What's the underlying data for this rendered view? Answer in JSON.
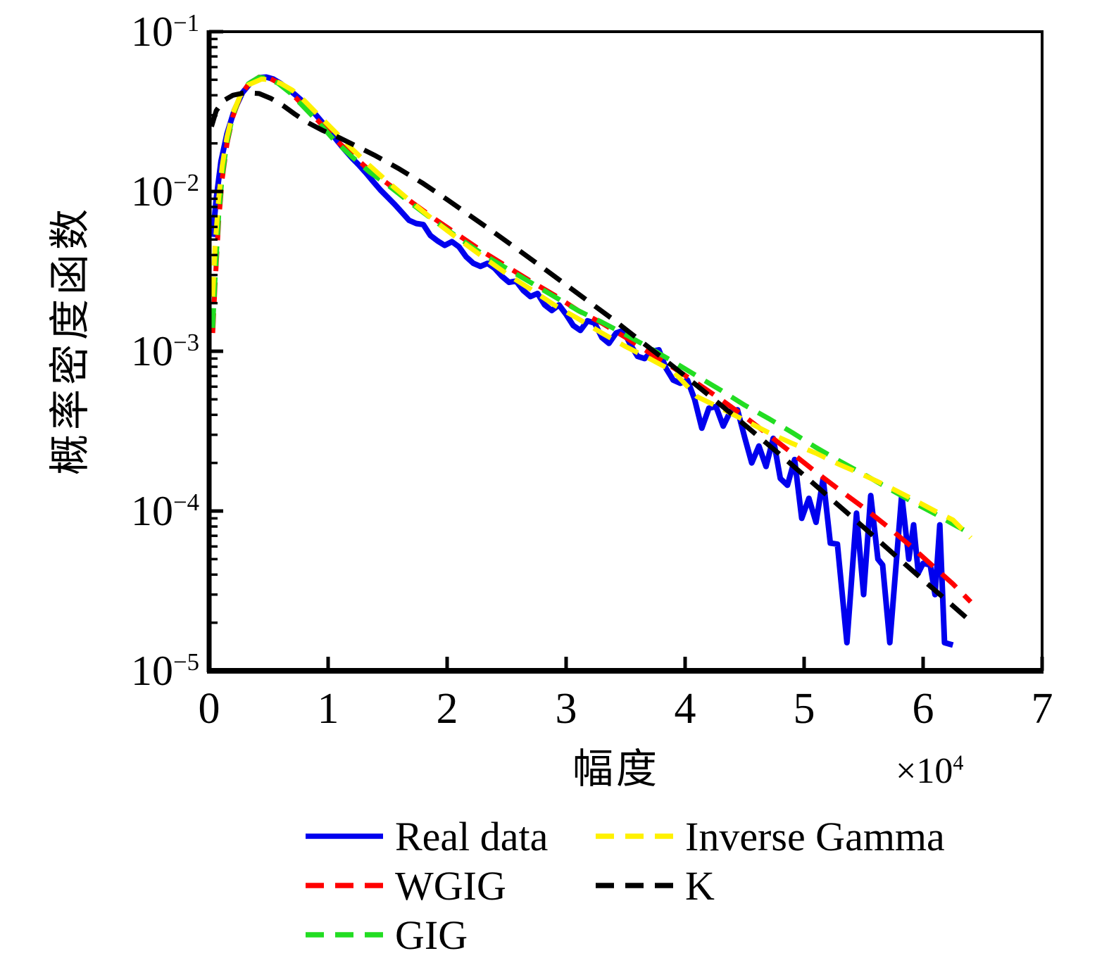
{
  "chart_data": {
    "type": "line",
    "title": "",
    "y_scale": "log",
    "grid": false,
    "legend_position": "below",
    "xlabel": "幅度",
    "ylabel": "概率密度函数",
    "x_multiplier": {
      "times": "×10",
      "exp": "4"
    },
    "xlim": [
      0,
      7
    ],
    "ylim": [
      1e-05,
      0.1
    ],
    "ylim_exp": [
      -5,
      -1
    ],
    "x_ticks": [
      0,
      1,
      2,
      3,
      4,
      5,
      6,
      7
    ],
    "x_tick_labels": [
      "0",
      "1",
      "2",
      "3",
      "4",
      "5",
      "6",
      "7"
    ],
    "y_tick_exps": [
      -1,
      -2,
      -3,
      -4,
      -5
    ],
    "y_tick_labels": [
      {
        "base": "10",
        "exp": "−1"
      },
      {
        "base": "10",
        "exp": "−2"
      },
      {
        "base": "10",
        "exp": "−3"
      },
      {
        "base": "10",
        "exp": "−4"
      },
      {
        "base": "10",
        "exp": "−5"
      }
    ],
    "series": [
      {
        "name": "Real data",
        "color": "#0000EE",
        "line_style": "solid",
        "points": [
          [
            0.03,
            0.0052
          ],
          [
            0.06,
            0.009
          ],
          [
            0.1,
            0.0155
          ],
          [
            0.15,
            0.023
          ],
          [
            0.21,
            0.032
          ],
          [
            0.28,
            0.0415
          ],
          [
            0.35,
            0.048
          ],
          [
            0.42,
            0.0515
          ],
          [
            0.48,
            0.052
          ],
          [
            0.54,
            0.0505
          ],
          [
            0.6,
            0.0475
          ],
          [
            0.66,
            0.044
          ],
          [
            0.72,
            0.0405
          ],
          [
            0.78,
            0.037
          ],
          [
            0.84,
            0.0335
          ],
          [
            0.9,
            0.03
          ],
          [
            0.96,
            0.0266
          ],
          [
            1.02,
            0.0235
          ],
          [
            1.08,
            0.0206
          ],
          [
            1.14,
            0.0182
          ],
          [
            1.2,
            0.0162
          ],
          [
            1.26,
            0.0146
          ],
          [
            1.32,
            0.013
          ],
          [
            1.38,
            0.0115
          ],
          [
            1.44,
            0.0102
          ],
          [
            1.5,
            0.0092
          ],
          [
            1.56,
            0.0083
          ],
          [
            1.62,
            0.0074
          ],
          [
            1.68,
            0.0066
          ],
          [
            1.74,
            0.0063
          ],
          [
            1.8,
            0.0062
          ],
          [
            1.86,
            0.0053
          ],
          [
            1.92,
            0.0049
          ],
          [
            1.98,
            0.0046
          ],
          [
            2.04,
            0.00485
          ],
          [
            2.1,
            0.0045
          ],
          [
            2.16,
            0.0039
          ],
          [
            2.22,
            0.00355
          ],
          [
            2.28,
            0.0034
          ],
          [
            2.34,
            0.00355
          ],
          [
            2.4,
            0.0033
          ],
          [
            2.46,
            0.00295
          ],
          [
            2.52,
            0.0027
          ],
          [
            2.58,
            0.00275
          ],
          [
            2.64,
            0.0024
          ],
          [
            2.7,
            0.0022
          ],
          [
            2.76,
            0.0023
          ],
          [
            2.82,
            0.00195
          ],
          [
            2.88,
            0.0018
          ],
          [
            2.94,
            0.00195
          ],
          [
            3.0,
            0.0017
          ],
          [
            3.06,
            0.00145
          ],
          [
            3.12,
            0.00135
          ],
          [
            3.18,
            0.00155
          ],
          [
            3.24,
            0.0015
          ],
          [
            3.3,
            0.00122
          ],
          [
            3.36,
            0.00112
          ],
          [
            3.42,
            0.0013
          ],
          [
            3.48,
            0.00135
          ],
          [
            3.54,
            0.0011
          ],
          [
            3.6,
            0.00093
          ],
          [
            3.66,
            0.0009
          ],
          [
            3.72,
            0.001
          ],
          [
            3.78,
            0.00102
          ],
          [
            3.84,
            0.00078
          ],
          [
            3.9,
            0.00066
          ],
          [
            3.96,
            0.00063
          ],
          [
            4.02,
            0.00066
          ],
          [
            4.08,
            0.0005
          ],
          [
            4.14,
            0.00033
          ],
          [
            4.2,
            0.00044
          ],
          [
            4.26,
            0.00045
          ],
          [
            4.32,
            0.00034
          ],
          [
            4.38,
            0.00042
          ],
          [
            4.44,
            0.00043
          ],
          [
            4.5,
            0.00029
          ],
          [
            4.56,
            0.0002
          ],
          [
            4.62,
            0.000255
          ],
          [
            4.68,
            0.00019
          ],
          [
            4.74,
            0.000285
          ],
          [
            4.8,
            0.00016
          ],
          [
            4.86,
            0.000145
          ],
          [
            4.92,
            0.00021
          ],
          [
            4.98,
            9e-05
          ],
          [
            5.04,
            0.00012
          ],
          [
            5.1,
            8.5e-05
          ],
          [
            5.16,
            0.00016
          ],
          [
            5.22,
            6.3e-05
          ],
          [
            5.28,
            6.2e-05
          ],
          [
            5.36,
            1.5e-05
          ],
          [
            5.44,
            9.7e-05
          ],
          [
            5.5,
            3e-05
          ],
          [
            5.56,
            0.000125
          ],
          [
            5.62,
            5e-05
          ],
          [
            5.66,
            4.6e-05
          ],
          [
            5.72,
            1.5e-05
          ],
          [
            5.82,
            0.000126
          ],
          [
            5.88,
            5e-05
          ],
          [
            5.92,
            8.2e-05
          ],
          [
            5.96,
            4.1e-05
          ],
          [
            6.0,
            4.7e-05
          ],
          [
            6.06,
            4.6e-05
          ],
          [
            6.1,
            3e-05
          ],
          [
            6.14,
            8.2e-05
          ],
          [
            6.18,
            1.5e-05
          ],
          [
            6.25,
            1.45e-05
          ]
        ]
      },
      {
        "name": "WGIG",
        "color": "#FF0000",
        "line_style": "dashed",
        "points": [
          [
            0.03,
            0.0013
          ],
          [
            0.05,
            0.0026
          ],
          [
            0.08,
            0.0065
          ],
          [
            0.11,
            0.012
          ],
          [
            0.15,
            0.02
          ],
          [
            0.2,
            0.0295
          ],
          [
            0.26,
            0.039
          ],
          [
            0.33,
            0.047
          ],
          [
            0.42,
            0.052
          ],
          [
            0.5,
            0.0515
          ],
          [
            0.58,
            0.048
          ],
          [
            0.68,
            0.042
          ],
          [
            0.8,
            0.034
          ],
          [
            0.92,
            0.0275
          ],
          [
            1.05,
            0.0215
          ],
          [
            1.2,
            0.017
          ],
          [
            1.35,
            0.0135
          ],
          [
            1.5,
            0.0112
          ],
          [
            1.7,
            0.0086
          ],
          [
            1.9,
            0.0067
          ],
          [
            2.1,
            0.0053
          ],
          [
            2.3,
            0.0042
          ],
          [
            2.5,
            0.0034
          ],
          [
            2.7,
            0.00275
          ],
          [
            2.9,
            0.00225
          ],
          [
            3.1,
            0.0018
          ],
          [
            3.3,
            0.0015
          ],
          [
            3.5,
            0.00122
          ],
          [
            3.7,
            0.00098
          ],
          [
            3.9,
            0.00079
          ],
          [
            4.1,
            0.00063
          ],
          [
            4.3,
            0.0005
          ],
          [
            4.5,
            0.00039
          ],
          [
            4.7,
            0.0003
          ],
          [
            4.9,
            0.00023
          ],
          [
            5.1,
            0.000175
          ],
          [
            5.3,
            0.000135
          ],
          [
            5.5,
            0.000105
          ],
          [
            5.7,
            8e-05
          ],
          [
            5.9,
            6e-05
          ],
          [
            6.1,
            4.4e-05
          ],
          [
            6.25,
            3.5e-05
          ],
          [
            6.4,
            2.7e-05
          ]
        ]
      },
      {
        "name": "GIG",
        "color": "#22DD22",
        "line_style": "dashed",
        "points": [
          [
            0.03,
            0.0014
          ],
          [
            0.05,
            0.0028
          ],
          [
            0.08,
            0.007
          ],
          [
            0.11,
            0.0125
          ],
          [
            0.15,
            0.0205
          ],
          [
            0.2,
            0.03
          ],
          [
            0.26,
            0.0395
          ],
          [
            0.33,
            0.0472
          ],
          [
            0.42,
            0.0518
          ],
          [
            0.5,
            0.051
          ],
          [
            0.58,
            0.0475
          ],
          [
            0.68,
            0.0415
          ],
          [
            0.8,
            0.0335
          ],
          [
            0.92,
            0.027
          ],
          [
            1.05,
            0.021
          ],
          [
            1.2,
            0.0165
          ],
          [
            1.35,
            0.0132
          ],
          [
            1.5,
            0.011
          ],
          [
            1.7,
            0.0084
          ],
          [
            1.9,
            0.0065
          ],
          [
            2.1,
            0.0051
          ],
          [
            2.3,
            0.00405
          ],
          [
            2.5,
            0.0033
          ],
          [
            2.7,
            0.0027
          ],
          [
            2.9,
            0.0022
          ],
          [
            3.1,
            0.0018
          ],
          [
            3.3,
            0.00152
          ],
          [
            3.5,
            0.00127
          ],
          [
            3.7,
            0.00105
          ],
          [
            3.9,
            0.00086
          ],
          [
            4.1,
            0.0007
          ],
          [
            4.3,
            0.00057
          ],
          [
            4.5,
            0.00046
          ],
          [
            4.7,
            0.00038
          ],
          [
            4.9,
            0.00031
          ],
          [
            5.1,
            0.00025
          ],
          [
            5.3,
            0.000205
          ],
          [
            5.5,
            0.00017
          ],
          [
            5.7,
            0.00014
          ],
          [
            5.9,
            0.000115
          ],
          [
            6.1,
            9.6e-05
          ],
          [
            6.25,
            8.3e-05
          ],
          [
            6.4,
            7.2e-05
          ]
        ]
      },
      {
        "name": "Inverse Gamma",
        "color": "#FFF100",
        "line_style": "dashed",
        "points": [
          [
            0.03,
            0.0022
          ],
          [
            0.05,
            0.0045
          ],
          [
            0.08,
            0.009
          ],
          [
            0.11,
            0.0145
          ],
          [
            0.15,
            0.022
          ],
          [
            0.2,
            0.031
          ],
          [
            0.26,
            0.0395
          ],
          [
            0.33,
            0.0465
          ],
          [
            0.44,
            0.0505
          ],
          [
            0.52,
            0.05
          ],
          [
            0.6,
            0.0475
          ],
          [
            0.7,
            0.043
          ],
          [
            0.8,
            0.037
          ],
          [
            0.92,
            0.03
          ],
          [
            1.05,
            0.024
          ],
          [
            1.2,
            0.0185
          ],
          [
            1.35,
            0.0145
          ],
          [
            1.5,
            0.0115
          ],
          [
            1.7,
            0.0086
          ],
          [
            1.9,
            0.0065
          ],
          [
            2.1,
            0.005
          ],
          [
            2.3,
            0.0039
          ],
          [
            2.5,
            0.00305
          ],
          [
            2.7,
            0.00245
          ],
          [
            2.9,
            0.00195
          ],
          [
            3.1,
            0.0016
          ],
          [
            3.3,
            0.0013
          ],
          [
            3.5,
            0.00107
          ],
          [
            3.7,
            0.0009
          ],
          [
            3.9,
            0.00075
          ],
          [
            4.1,
            0.00052
          ],
          [
            4.3,
            0.00044
          ],
          [
            4.5,
            0.00037
          ],
          [
            4.7,
            0.00031
          ],
          [
            4.9,
            0.000265
          ],
          [
            5.1,
            0.00023
          ],
          [
            5.3,
            0.000195
          ],
          [
            5.5,
            0.000168
          ],
          [
            5.7,
            0.000143
          ],
          [
            5.9,
            0.00012
          ],
          [
            6.1,
            0.0001
          ],
          [
            6.25,
            8.8e-05
          ],
          [
            6.4,
            6.8e-05
          ]
        ]
      },
      {
        "name": "K",
        "color": "#000000",
        "line_style": "dashed",
        "points": [
          [
            0.02,
            0.0255
          ],
          [
            0.06,
            0.032
          ],
          [
            0.12,
            0.037
          ],
          [
            0.2,
            0.04
          ],
          [
            0.3,
            0.0415
          ],
          [
            0.42,
            0.041
          ],
          [
            0.52,
            0.0382
          ],
          [
            0.62,
            0.0345
          ],
          [
            0.72,
            0.0305
          ],
          [
            0.82,
            0.0272
          ],
          [
            0.95,
            0.0242
          ],
          [
            1.1,
            0.0216
          ],
          [
            1.25,
            0.019
          ],
          [
            1.4,
            0.0167
          ],
          [
            1.6,
            0.0138
          ],
          [
            1.8,
            0.0112
          ],
          [
            2.0,
            0.0089
          ],
          [
            2.2,
            0.007
          ],
          [
            2.4,
            0.0055
          ],
          [
            2.6,
            0.0043
          ],
          [
            2.8,
            0.00335
          ],
          [
            3.0,
            0.0026
          ],
          [
            3.2,
            0.00202
          ],
          [
            3.4,
            0.00157
          ],
          [
            3.6,
            0.0012
          ],
          [
            3.8,
            0.00092
          ],
          [
            4.0,
            0.0007
          ],
          [
            4.2,
            0.00053
          ],
          [
            4.4,
            0.0004
          ],
          [
            4.6,
            0.0003
          ],
          [
            4.8,
            0.000225
          ],
          [
            5.0,
            0.000167
          ],
          [
            5.2,
            0.000124
          ],
          [
            5.4,
            9.2e-05
          ],
          [
            5.6,
            6.8e-05
          ],
          [
            5.8,
            5e-05
          ],
          [
            6.0,
            3.7e-05
          ],
          [
            6.2,
            2.75e-05
          ],
          [
            6.38,
            2.1e-05
          ]
        ]
      }
    ]
  }
}
